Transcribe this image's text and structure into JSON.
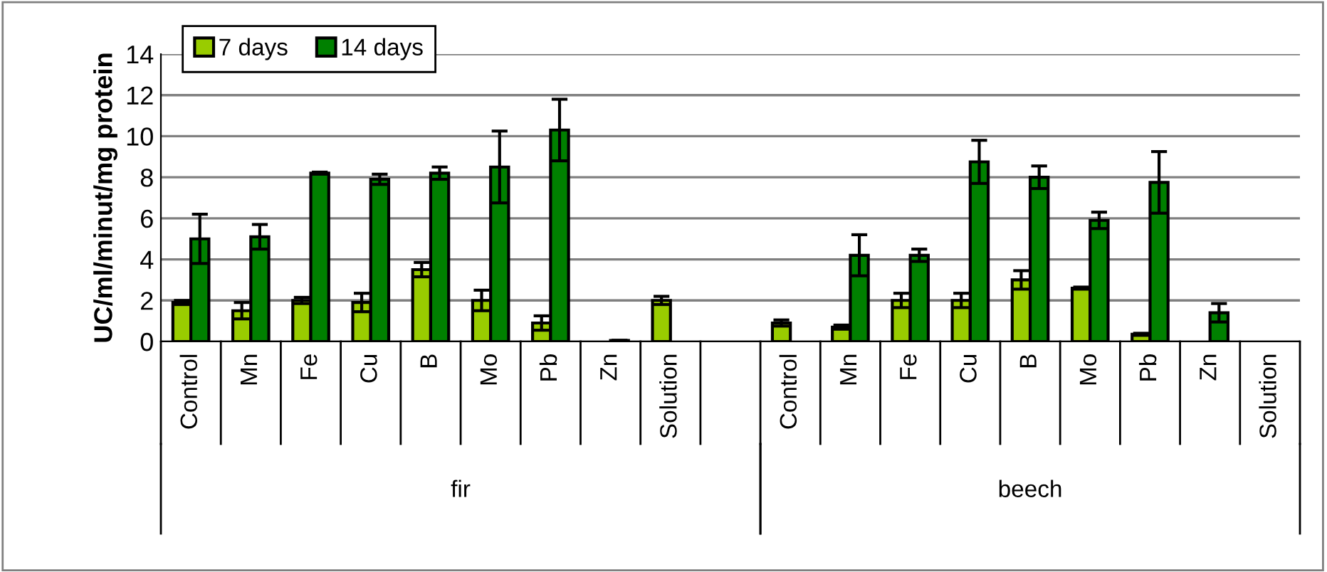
{
  "chart_data": {
    "type": "bar",
    "ylabel": "UC/ml/minut/mg protein",
    "categories": [
      "Control",
      "Mn",
      "Fe",
      "Cu",
      "B",
      "Mo",
      "Pb",
      "Zn",
      "Solution",
      null,
      "Control",
      "Mn",
      "Fe",
      "Cu",
      "B",
      "Mo",
      "Pb",
      "Zn",
      "Solution"
    ],
    "annotations": [
      "fir",
      "beech"
    ],
    "series": [
      {
        "name": "7 days",
        "color": "#99cc00",
        "values": [
          1.9,
          1.5,
          2.0,
          1.9,
          3.5,
          2.0,
          0.9,
          null,
          2.0,
          null,
          0.9,
          0.7,
          2.0,
          2.0,
          3.0,
          2.6,
          0.35,
          null,
          null
        ],
        "errors": [
          0.1,
          0.4,
          0.15,
          0.45,
          0.35,
          0.5,
          0.35,
          null,
          0.2,
          null,
          0.15,
          0.1,
          0.35,
          0.35,
          0.45,
          0.05,
          0.05,
          null,
          null
        ]
      },
      {
        "name": "14 days",
        "color": "#008000",
        "values": [
          5.0,
          5.1,
          8.2,
          7.9,
          8.2,
          8.5,
          10.3,
          0.05,
          null,
          null,
          null,
          4.2,
          4.2,
          8.75,
          8.0,
          5.9,
          7.75,
          1.4,
          null
        ],
        "errors": [
          1.2,
          0.6,
          0.05,
          0.25,
          0.3,
          1.75,
          1.5,
          null,
          null,
          null,
          null,
          1.0,
          0.3,
          1.05,
          0.55,
          0.4,
          1.5,
          0.45,
          null
        ]
      }
    ],
    "ylim": [
      0,
      14
    ],
    "yticks": [
      0,
      2,
      4,
      6,
      8,
      10,
      12,
      14
    ],
    "grid": "y",
    "legend": "top left"
  }
}
